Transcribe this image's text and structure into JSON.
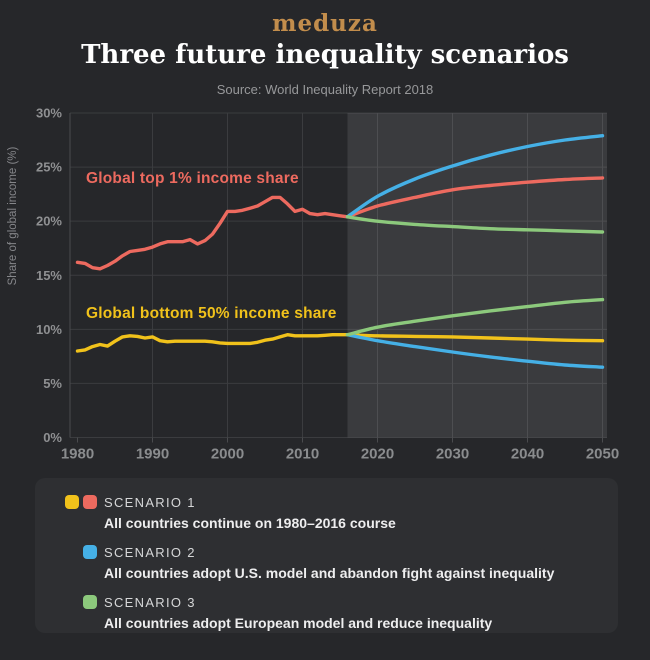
{
  "header": {
    "logo": "meduza",
    "title": "Three future inequality scenarios",
    "source": "Source: World Inequality Report 2018"
  },
  "colors": {
    "background": "#26272a",
    "panel": "#2e2f32",
    "red": "#ed6a5f",
    "yellow": "#f1c21b",
    "blue": "#45b0e6",
    "green": "#8cc97c",
    "grid": "#3b3c3f",
    "axis_line": "#4a4b4e",
    "projection_overlay": "rgba(255,255,255,0.095)"
  },
  "chart_data": {
    "type": "line",
    "title": "Three future inequality scenarios",
    "xlabel": "",
    "ylabel": "Share of global income (%)",
    "xlim": [
      1980,
      2050
    ],
    "ylim": [
      0,
      30
    ],
    "x_ticks": [
      1980,
      1990,
      2000,
      2010,
      2020,
      2030,
      2040,
      2050
    ],
    "y_ticks": [
      0,
      5,
      10,
      15,
      20,
      25,
      30
    ],
    "grid": true,
    "projection_start": 2016,
    "annotations": [
      {
        "text": "Global top 1% income share",
        "color_key": "red",
        "x": 1982,
        "y": 23.6
      },
      {
        "text": "Global bottom 50% income share",
        "color_key": "yellow",
        "x": 1982,
        "y": 11.2
      }
    ],
    "series": [
      {
        "name": "top-1-historical",
        "color_key": "red",
        "smooth": false,
        "x_start": 1980,
        "x_step": 1,
        "values": [
          16.2,
          16.1,
          15.7,
          15.6,
          15.9,
          16.3,
          16.8,
          17.2,
          17.3,
          17.4,
          17.6,
          17.9,
          18.1,
          18.1,
          18.1,
          18.3,
          17.9,
          18.2,
          18.8,
          19.8,
          20.9,
          20.9,
          21.0,
          21.2,
          21.4,
          21.8,
          22.2,
          22.2,
          21.6,
          20.9,
          21.1,
          20.7,
          20.6,
          20.7,
          20.6,
          20.5,
          20.4
        ]
      },
      {
        "name": "bottom-50-historical",
        "color_key": "yellow",
        "smooth": false,
        "x_start": 1980,
        "x_step": 1,
        "values": [
          8.0,
          8.1,
          8.4,
          8.6,
          8.45,
          8.9,
          9.3,
          9.4,
          9.35,
          9.2,
          9.3,
          8.95,
          8.85,
          8.9,
          8.9,
          8.9,
          8.9,
          8.9,
          8.85,
          8.75,
          8.7,
          8.7,
          8.7,
          8.7,
          8.8,
          9.0,
          9.1,
          9.3,
          9.5,
          9.4,
          9.4,
          9.4,
          9.4,
          9.45,
          9.5,
          9.5,
          9.5
        ]
      },
      {
        "name": "top-1-scenario-1",
        "color_key": "red",
        "smooth": true,
        "x": [
          2016,
          2020,
          2025,
          2030,
          2035,
          2040,
          2045,
          2050
        ],
        "values": [
          20.4,
          21.4,
          22.2,
          22.9,
          23.3,
          23.6,
          23.85,
          24.0
        ]
      },
      {
        "name": "top-1-scenario-2",
        "color_key": "blue",
        "smooth": true,
        "x": [
          2016,
          2020,
          2025,
          2030,
          2035,
          2040,
          2045,
          2050
        ],
        "values": [
          20.4,
          22.3,
          23.9,
          25.1,
          26.1,
          26.9,
          27.5,
          27.9
        ]
      },
      {
        "name": "top-1-scenario-3",
        "color_key": "green",
        "smooth": true,
        "x": [
          2016,
          2020,
          2025,
          2030,
          2035,
          2040,
          2045,
          2050
        ],
        "values": [
          20.4,
          20.0,
          19.7,
          19.5,
          19.3,
          19.2,
          19.1,
          19.0
        ]
      },
      {
        "name": "bottom-50-scenario-1",
        "color_key": "yellow",
        "smooth": true,
        "x": [
          2016,
          2020,
          2025,
          2030,
          2035,
          2040,
          2045,
          2050
        ],
        "values": [
          9.5,
          9.4,
          9.35,
          9.3,
          9.2,
          9.1,
          9.0,
          8.95
        ]
      },
      {
        "name": "bottom-50-scenario-2",
        "color_key": "blue",
        "smooth": true,
        "x": [
          2016,
          2020,
          2025,
          2030,
          2035,
          2040,
          2045,
          2050
        ],
        "values": [
          9.5,
          8.95,
          8.4,
          7.9,
          7.45,
          7.05,
          6.7,
          6.5
        ]
      },
      {
        "name": "bottom-50-scenario-3",
        "color_key": "green",
        "smooth": true,
        "x": [
          2016,
          2020,
          2025,
          2030,
          2035,
          2040,
          2045,
          2050
        ],
        "values": [
          9.5,
          10.2,
          10.75,
          11.25,
          11.7,
          12.1,
          12.5,
          12.75
        ]
      }
    ]
  },
  "legend": {
    "items": [
      {
        "label": "SCENARIO 1",
        "desc": "All countries continue on 1980–2016 course",
        "swatches": [
          "yellow",
          "red"
        ]
      },
      {
        "label": "SCENARIO 2",
        "desc": "All countries adopt U.S. model and abandon fight against inequality",
        "swatches": [
          "blue"
        ]
      },
      {
        "label": "SCENARIO 3",
        "desc": "All countries adopt European model and reduce inequality",
        "swatches": [
          "green"
        ]
      }
    ]
  }
}
